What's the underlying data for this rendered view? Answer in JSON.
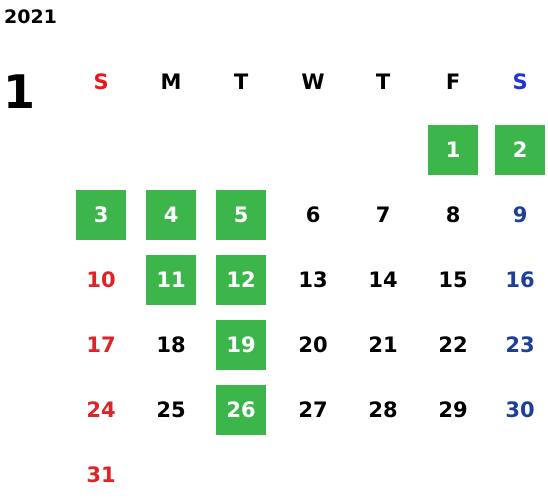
{
  "calendar": {
    "year": "2021",
    "month": "1",
    "weekdays": [
      {
        "label": "S",
        "type": "sun"
      },
      {
        "label": "M",
        "type": "weekday"
      },
      {
        "label": "T",
        "type": "weekday"
      },
      {
        "label": "W",
        "type": "weekday"
      },
      {
        "label": "T",
        "type": "weekday"
      },
      {
        "label": "F",
        "type": "weekday"
      },
      {
        "label": "S",
        "type": "sat"
      }
    ],
    "first_weekday_index": 5,
    "days_in_month": 31,
    "highlighted_days": [
      1,
      2,
      3,
      4,
      5,
      11,
      12,
      19,
      26
    ]
  },
  "colors": {
    "highlight_bg": "#3cb54a",
    "highlight_text": "#ffffff",
    "sunday_header": "#e8171c",
    "saturday_header": "#1f33d6",
    "sunday_day": "#e02325",
    "saturday_day": "#1f3e96",
    "weekday_text": "#000000"
  }
}
